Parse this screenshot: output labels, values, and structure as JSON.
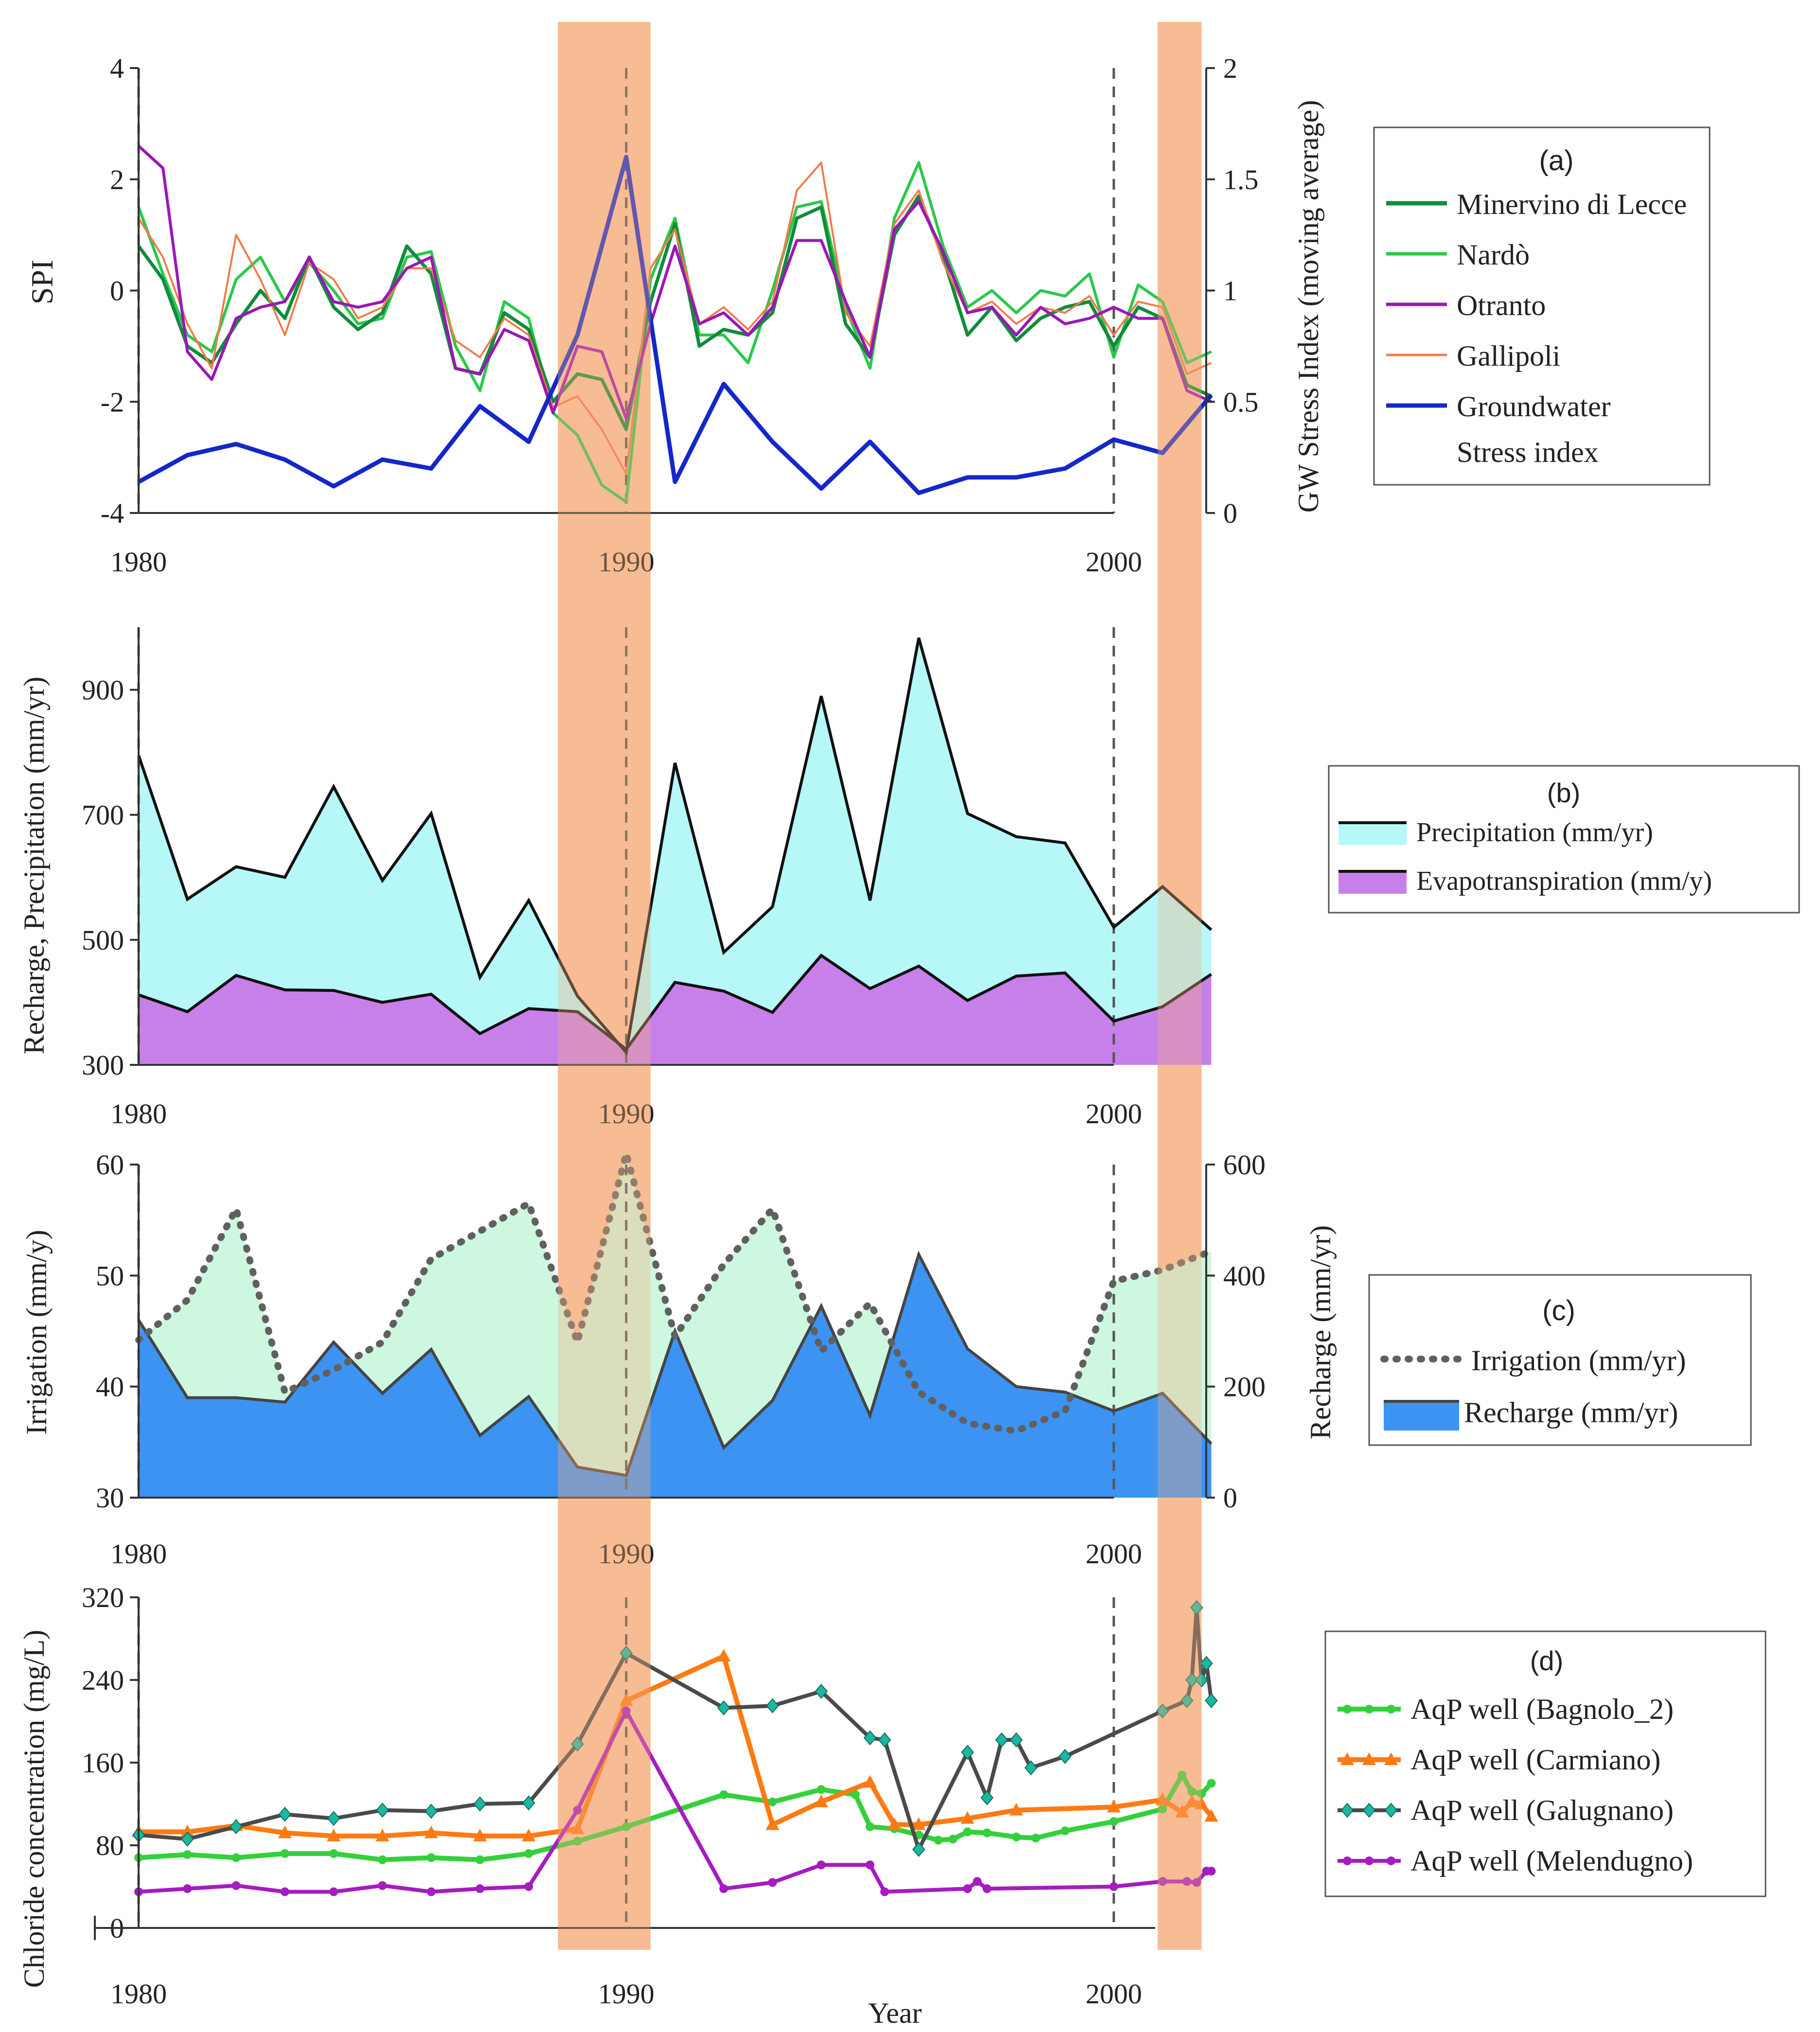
{
  "xlabel": "Year",
  "x_tick_labels": [
    "1980",
    "1990",
    "2000"
  ],
  "shaded_periods": [
    [
      1988.6,
      1990.5
    ],
    [
      2000.9,
      2001.8
    ]
  ],
  "dashed_years": [
    1980,
    1990,
    2000
  ],
  "colors": {
    "shade": "#f5b07e",
    "minervino": "#108c3c",
    "nardo": "#2cc84a",
    "otranto": "#9b16b8",
    "gallipoli": "#f07a4a",
    "gwsi": "#1428c8",
    "precip_fill": "#b6f7f8",
    "et_fill": "#c780ea",
    "irrig_fill": "#cdf7df",
    "recharge_fill": "#3d93f2",
    "irrig_line": "#606060",
    "bagnolo": "#34d03c",
    "carmiano": "#ff7a12",
    "galugnano_line": "#4a4a4a",
    "galugnano_marker": "#1ab8a0",
    "melendugno": "#a51cc0"
  },
  "chart_data": [
    {
      "id": "a",
      "type": "line",
      "ylabel": "SPI",
      "y2label": "GW Stress Index (moving average)",
      "ylim": [
        -4,
        4
      ],
      "y2lim": [
        0,
        2
      ],
      "yticks": [
        "-4",
        "-2",
        "0",
        "2",
        "4"
      ],
      "y2ticks": [
        "0",
        "0.5",
        "1",
        "1.5",
        "2"
      ],
      "legend": {
        "title": "(a)",
        "entries": [
          "Minervino di Lecce",
          "Nardò",
          "Otranto",
          "Gallipoli",
          "Groundwater",
          "Stress index"
        ]
      },
      "series": [
        {
          "name": "Minervino di Lecce",
          "x": [
            1980,
            1980.5,
            1981,
            1981.5,
            1982,
            1982.5,
            1983,
            1983.5,
            1984,
            1984.5,
            1985,
            1985.5,
            1986,
            1986.5,
            1987,
            1987.5,
            1988,
            1988.5,
            1989,
            1989.5,
            1990,
            1990.5,
            1991,
            1991.5,
            1992,
            1992.5,
            1993,
            1993.5,
            1994,
            1994.5,
            1995,
            1995.5,
            1996,
            1996.5,
            1997,
            1997.5,
            1998,
            1998.5,
            1999,
            1999.5,
            2000,
            2000.5,
            2001,
            2001.5,
            2002
          ],
          "values": [
            0.8,
            0.2,
            -1.0,
            -1.3,
            -0.6,
            0.0,
            -0.5,
            0.6,
            -0.3,
            -0.7,
            -0.4,
            0.8,
            0.3,
            -1.4,
            -1.5,
            -0.4,
            -0.7,
            -2.0,
            -1.5,
            -1.6,
            -2.5,
            -0.2,
            1.2,
            -1.0,
            -0.7,
            -0.8,
            -0.4,
            1.3,
            1.5,
            -0.6,
            -1.2,
            1.0,
            1.7,
            0.6,
            -0.8,
            -0.3,
            -0.9,
            -0.5,
            -0.3,
            -0.2,
            -1.0,
            -0.3,
            -0.5,
            -1.7,
            -1.9
          ]
        },
        {
          "name": "Nardò",
          "x": [
            1980,
            1980.5,
            1981,
            1981.5,
            1982,
            1982.5,
            1983,
            1983.5,
            1984,
            1984.5,
            1985,
            1985.5,
            1986,
            1986.5,
            1987,
            1987.5,
            1988,
            1988.5,
            1989,
            1989.5,
            1990,
            1990.5,
            1991,
            1991.5,
            1992,
            1992.5,
            1993,
            1993.5,
            1994,
            1994.5,
            1995,
            1995.5,
            1996,
            1996.5,
            1997,
            1997.5,
            1998,
            1998.5,
            1999,
            1999.5,
            2000,
            2000.5,
            2001,
            2001.5,
            2002
          ],
          "values": [
            1.5,
            0.3,
            -0.8,
            -1.1,
            0.2,
            0.6,
            -0.2,
            0.5,
            0.0,
            -0.6,
            -0.5,
            0.6,
            0.7,
            -1.0,
            -1.8,
            -0.2,
            -0.5,
            -2.2,
            -2.6,
            -3.5,
            -3.8,
            0.2,
            1.3,
            -0.8,
            -0.8,
            -1.3,
            0.0,
            1.5,
            1.6,
            -0.3,
            -1.4,
            1.3,
            2.3,
            0.8,
            -0.3,
            0.0,
            -0.4,
            0.0,
            -0.1,
            0.3,
            -1.2,
            0.1,
            -0.2,
            -1.3,
            -1.1
          ]
        },
        {
          "name": "Otranto",
          "x": [
            1980,
            1980.5,
            1981,
            1981.5,
            1982,
            1982.5,
            1983,
            1983.5,
            1984,
            1984.5,
            1985,
            1985.5,
            1986,
            1986.5,
            1987,
            1987.5,
            1988,
            1988.5,
            1989,
            1989.5,
            1990,
            1990.5,
            1991,
            1991.5,
            1992,
            1992.5,
            1993,
            1993.5,
            1994,
            1994.5,
            1995,
            1995.5,
            1996,
            1996.5,
            1997,
            1997.5,
            1998,
            1998.5,
            1999,
            1999.5,
            2000,
            2000.5,
            2001,
            2001.5,
            2002
          ],
          "values": [
            2.6,
            2.2,
            -1.1,
            -1.6,
            -0.5,
            -0.3,
            -0.2,
            0.6,
            -0.2,
            -0.3,
            -0.2,
            0.4,
            0.6,
            -1.4,
            -1.5,
            -0.7,
            -0.9,
            -2.2,
            -1.0,
            -1.1,
            -2.3,
            -0.6,
            0.8,
            -0.6,
            -0.4,
            -0.8,
            -0.3,
            0.9,
            0.9,
            -0.2,
            -1.2,
            1.1,
            1.6,
            0.7,
            -0.4,
            -0.3,
            -0.8,
            -0.3,
            -0.6,
            -0.5,
            -0.3,
            -0.5,
            -0.5,
            -1.8,
            -2.0
          ]
        },
        {
          "name": "Gallipoli",
          "x": [
            1980,
            1980.5,
            1981,
            1981.5,
            1982,
            1982.5,
            1983,
            1983.5,
            1984,
            1984.5,
            1985,
            1985.5,
            1986,
            1986.5,
            1987,
            1987.5,
            1988,
            1988.5,
            1989,
            1989.5,
            1990,
            1990.5,
            1991,
            1991.5,
            1992,
            1992.5,
            1993,
            1993.5,
            1994,
            1994.5,
            1995,
            1995.5,
            1996,
            1996.5,
            1997,
            1997.5,
            1998,
            1998.5,
            1999,
            1999.5,
            2000,
            2000.5,
            2001,
            2001.5,
            2002
          ],
          "values": [
            1.3,
            0.6,
            -0.6,
            -1.4,
            1.0,
            0.2,
            -0.8,
            0.5,
            0.2,
            -0.5,
            -0.3,
            0.4,
            0.4,
            -0.9,
            -1.2,
            -0.5,
            -0.8,
            -2.1,
            -1.9,
            -2.5,
            -3.3,
            0.4,
            1.1,
            -0.6,
            -0.3,
            -0.7,
            -0.2,
            1.8,
            2.3,
            -0.4,
            -1.0,
            1.2,
            1.8,
            0.5,
            -0.4,
            -0.2,
            -0.6,
            -0.3,
            -0.4,
            -0.1,
            -0.8,
            -0.2,
            -0.3,
            -1.5,
            -1.3
          ]
        },
        {
          "name": "Groundwater Stress index",
          "axis": "right",
          "x": [
            1980,
            1981,
            1982,
            1983,
            1984,
            1985,
            1986,
            1987,
            1988,
            1989,
            1990,
            1991,
            1992,
            1993,
            1994,
            1995,
            1996,
            1997,
            1998,
            1999,
            2000,
            2001,
            2002
          ],
          "values": [
            0.14,
            0.26,
            0.31,
            0.24,
            0.12,
            0.24,
            0.2,
            0.48,
            0.32,
            0.8,
            1.6,
            0.14,
            0.58,
            0.32,
            0.11,
            0.32,
            0.09,
            0.16,
            0.16,
            0.2,
            0.33,
            0.27,
            0.53
          ]
        }
      ]
    },
    {
      "id": "b",
      "type": "area",
      "ylabel": "Recharge, Precipitation (mm/yr)",
      "ylim": [
        300,
        1000
      ],
      "yticks": [
        "300",
        "500",
        "700",
        "900"
      ],
      "legend": {
        "title": "(b)",
        "entries": [
          "Precipitation (mm/yr)",
          "Evapotranspiration (mm/y)"
        ]
      },
      "x": [
        1980,
        1981,
        1982,
        1983,
        1984,
        1985,
        1986,
        1987,
        1988,
        1989,
        1990,
        1991,
        1992,
        1993,
        1994,
        1995,
        1996,
        1997,
        1998,
        1999,
        2000,
        2001,
        2002
      ],
      "series": [
        {
          "name": "Precipitation (mm/yr)",
          "values": [
            795,
            565,
            617,
            600,
            745,
            595,
            702,
            440,
            563,
            410,
            320,
            783,
            480,
            553,
            890,
            563,
            983,
            702,
            665,
            655,
            520,
            585,
            516
          ]
        },
        {
          "name": "Evapotranspiration (mm/y)",
          "values": [
            412,
            385,
            443,
            420,
            419,
            400,
            413,
            350,
            390,
            385,
            325,
            432,
            418,
            384,
            475,
            422,
            458,
            403,
            442,
            447,
            370,
            393,
            445
          ]
        }
      ]
    },
    {
      "id": "c",
      "type": "area",
      "ylabel": "Irrigation (mm/y)",
      "y2label": "Recharge (mm/yr)",
      "ylim": [
        30,
        60
      ],
      "y2lim": [
        0,
        600
      ],
      "yticks": [
        "30",
        "40",
        "50",
        "60"
      ],
      "y2ticks": [
        "0",
        "200",
        "400",
        "600"
      ],
      "legend": {
        "title": "(c)",
        "entries": [
          "Irrigation (mm/yr)",
          "Recharge (mm/yr)"
        ]
      },
      "x": [
        1980,
        1981,
        1982,
        1983,
        1984,
        1985,
        1986,
        1987,
        1988,
        1989,
        1990,
        1991,
        1992,
        1993,
        1994,
        1995,
        1996,
        1997,
        1998,
        1999,
        2000,
        2001,
        2002
      ],
      "series": [
        {
          "name": "Irrigation (mm/yr)",
          "axis": "left",
          "values": [
            44.2,
            47.8,
            56.0,
            39.5,
            41.5,
            44.0,
            51.5,
            54.0,
            56.5,
            44.0,
            61.0,
            44.5,
            51.0,
            56.0,
            43.2,
            47.5,
            39.5,
            36.7,
            36.0,
            37.8,
            49.5,
            50.5,
            52.2
          ]
        },
        {
          "name": "Recharge (mm/yr)",
          "axis": "right",
          "values": [
            320,
            180,
            180,
            172,
            280,
            188,
            267,
            112,
            182,
            55,
            40,
            300,
            90,
            175,
            345,
            148,
            438,
            268,
            200,
            190,
            156,
            188,
            97
          ]
        }
      ]
    },
    {
      "id": "d",
      "type": "line",
      "ylabel": "Chloride concentration (mg/L)",
      "ylim": [
        0,
        320
      ],
      "yticks": [
        "0",
        "80",
        "160",
        "240",
        "320"
      ],
      "legend": {
        "title": "(d)",
        "entries": [
          "AqP well (Bagnolo_2)",
          "AqP well (Carmiano)",
          "AqP well (Galugnano)",
          "AqP well (Melendugno)"
        ]
      },
      "series": [
        {
          "name": "AqP well (Bagnolo_2)",
          "x": [
            1980,
            1981,
            1982,
            1983,
            1984,
            1985,
            1986,
            1987,
            1988,
            1989,
            1990,
            1992,
            1993,
            1994,
            1994.7,
            1995,
            1995.5,
            1996,
            1996.4,
            1996.7,
            1997,
            1997.4,
            1998,
            1998.4,
            1999,
            2000,
            2001,
            2001.4,
            2001.6,
            2001.8,
            2002
          ],
          "values": [
            68,
            71,
            68,
            72,
            72,
            66,
            68,
            66,
            72,
            84,
            98,
            129,
            122,
            134,
            129,
            98,
            96,
            90,
            85,
            86,
            93,
            92,
            88,
            87,
            94,
            103,
            115,
            148,
            132,
            130,
            140
          ]
        },
        {
          "name": "AqP well (Carmiano)",
          "x": [
            1980,
            1981,
            1982,
            1983,
            1984,
            1985,
            1986,
            1987,
            1988,
            1989,
            1990,
            1992,
            1993,
            1994,
            1995,
            1995.5,
            1996,
            1997,
            1998,
            2000,
            2001,
            2001.4,
            2001.6,
            2001.8,
            2002
          ],
          "values": [
            93,
            93,
            99,
            92,
            89,
            89,
            92,
            89,
            89,
            96,
            220,
            263,
            100,
            122,
            141,
            100,
            100,
            106,
            114,
            117,
            124,
            112,
            122,
            120,
            108
          ]
        },
        {
          "name": "AqP well (Galugnano)",
          "x": [
            1980,
            1981,
            1982,
            1983,
            1984,
            1985,
            1986,
            1987,
            1988,
            1989,
            1990,
            1992,
            1993,
            1994,
            1995,
            1995.3,
            1996,
            1997,
            1997.4,
            1997.7,
            1998,
            1998.3,
            1999,
            2001,
            2001.5,
            2001.6,
            2001.7,
            2001.8,
            2001.9,
            2002
          ],
          "values": [
            90,
            86,
            98,
            110,
            106,
            114,
            113,
            120,
            121,
            178,
            266,
            213,
            215,
            229,
            184,
            182,
            76,
            170,
            126,
            182,
            182,
            155,
            166,
            210,
            220,
            240,
            310,
            240,
            256,
            220
          ]
        },
        {
          "name": "AqP well (Melendugno)",
          "x": [
            1980,
            1981,
            1982,
            1983,
            1984,
            1985,
            1986,
            1987,
            1988,
            1989,
            1990,
            1992,
            1993,
            1994,
            1995,
            1995.3,
            1997,
            1997.2,
            1997.4,
            2000,
            2001,
            2001.5,
            2001.7,
            2001.9,
            2002
          ],
          "values": [
            35,
            38,
            41,
            35,
            35,
            41,
            35,
            38,
            40,
            114,
            210,
            38,
            44,
            61,
            61,
            35,
            38,
            45,
            38,
            40,
            45,
            45,
            44,
            55,
            55
          ]
        }
      ]
    }
  ]
}
